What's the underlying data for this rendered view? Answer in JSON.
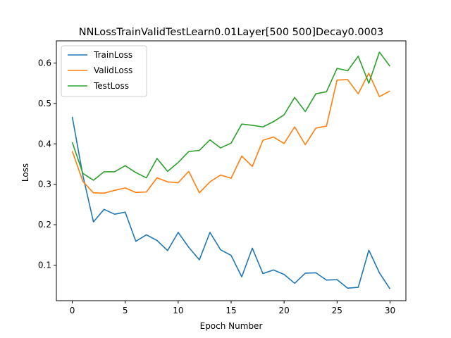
{
  "chart_data": {
    "type": "line",
    "title": "NNLossTrainValidTestLearn0.01Layer[500 500]Decay0.0003",
    "xlabel": "Epoch Number",
    "ylabel": "Loss",
    "xlim": [
      -1.5,
      31.5
    ],
    "ylim": [
      0.012,
      0.655
    ],
    "xticks": [
      0,
      5,
      10,
      15,
      20,
      25,
      30
    ],
    "yticks": [
      0.1,
      0.2,
      0.3,
      0.4,
      0.5,
      0.6
    ],
    "grid": false,
    "legend_position": "top-left",
    "x": [
      0,
      1,
      2,
      3,
      4,
      5,
      6,
      7,
      8,
      9,
      10,
      11,
      12,
      13,
      14,
      15,
      16,
      17,
      18,
      19,
      20,
      21,
      22,
      23,
      24,
      25,
      26,
      27,
      28,
      29,
      30
    ],
    "series": [
      {
        "name": "TrainLoss",
        "color": "#1f77b4",
        "values": [
          0.467,
          0.322,
          0.207,
          0.238,
          0.226,
          0.231,
          0.159,
          0.175,
          0.161,
          0.136,
          0.181,
          0.144,
          0.113,
          0.181,
          0.138,
          0.124,
          0.071,
          0.142,
          0.079,
          0.088,
          0.077,
          0.055,
          0.08,
          0.081,
          0.063,
          0.064,
          0.043,
          0.045,
          0.137,
          0.081,
          0.041
        ]
      },
      {
        "name": "ValidLoss",
        "color": "#ff7f0e",
        "values": [
          0.382,
          0.307,
          0.279,
          0.278,
          0.285,
          0.291,
          0.28,
          0.281,
          0.316,
          0.306,
          0.304,
          0.332,
          0.279,
          0.306,
          0.323,
          0.315,
          0.37,
          0.344,
          0.409,
          0.417,
          0.401,
          0.442,
          0.398,
          0.439,
          0.444,
          0.558,
          0.559,
          0.524,
          0.575,
          0.517,
          0.531
        ]
      },
      {
        "name": "TestLoss",
        "color": "#2ca02c",
        "values": [
          0.404,
          0.327,
          0.31,
          0.331,
          0.331,
          0.346,
          0.329,
          0.316,
          0.364,
          0.332,
          0.354,
          0.381,
          0.384,
          0.41,
          0.39,
          0.402,
          0.449,
          0.446,
          0.442,
          0.455,
          0.472,
          0.515,
          0.48,
          0.524,
          0.529,
          0.587,
          0.581,
          0.617,
          0.55,
          0.627,
          0.592
        ]
      }
    ]
  }
}
